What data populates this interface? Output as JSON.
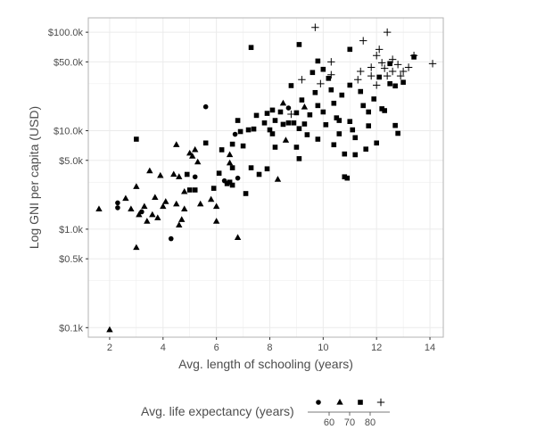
{
  "chart_data": {
    "type": "scatter",
    "xlabel": "Avg. length of schooling (years)",
    "ylabel": "Log GNI per capita (USD)",
    "x_scale": "linear",
    "y_scale": "log10",
    "xlim": [
      1.2,
      14.5
    ],
    "ylim": [
      80,
      140000
    ],
    "x_ticks": [
      2,
      4,
      6,
      8,
      10,
      12,
      14
    ],
    "x_minor_ticks": [
      3,
      5,
      7,
      9,
      11,
      13
    ],
    "y_ticks": [
      {
        "value": 100,
        "label": "$0.1k"
      },
      {
        "value": 500,
        "label": "$0.5k"
      },
      {
        "value": 1000,
        "label": "$1.0k"
      },
      {
        "value": 5000,
        "label": "$5.0k"
      },
      {
        "value": 10000,
        "label": "$10.0k"
      },
      {
        "value": 50000,
        "label": "$50.0k"
      },
      {
        "value": 100000,
        "label": "$100.0k"
      }
    ],
    "y_minor_ticks": [
      300,
      3000,
      30000
    ],
    "grid": true,
    "theme": "light",
    "legend": {
      "title": "Avg. life expectancy (years)",
      "position": "bottom",
      "shapes": [
        "circle",
        "triangle",
        "square",
        "plus"
      ],
      "labels": [
        "60",
        "70",
        "80"
      ]
    },
    "colors": {
      "marker": "#000000",
      "grid": "#ebebeb",
      "border": "#b3b3b3",
      "text": "#4d4d4d"
    },
    "points": [
      {
        "x": 2.0,
        "y": 95,
        "g": "triangle"
      },
      {
        "x": 1.6,
        "y": 1600,
        "g": "triangle"
      },
      {
        "x": 2.3,
        "y": 1850,
        "g": "circle"
      },
      {
        "x": 2.3,
        "y": 1650,
        "g": "circle"
      },
      {
        "x": 2.6,
        "y": 2050,
        "g": "triangle"
      },
      {
        "x": 2.8,
        "y": 1600,
        "g": "triangle"
      },
      {
        "x": 3.0,
        "y": 2700,
        "g": "triangle"
      },
      {
        "x": 3.0,
        "y": 650,
        "g": "triangle"
      },
      {
        "x": 3.0,
        "y": 8200,
        "g": "square"
      },
      {
        "x": 3.1,
        "y": 1400,
        "g": "triangle"
      },
      {
        "x": 3.2,
        "y": 1500,
        "g": "circle"
      },
      {
        "x": 3.3,
        "y": 1700,
        "g": "triangle"
      },
      {
        "x": 3.4,
        "y": 1200,
        "g": "triangle"
      },
      {
        "x": 3.5,
        "y": 3900,
        "g": "triangle"
      },
      {
        "x": 3.6,
        "y": 1400,
        "g": "triangle"
      },
      {
        "x": 3.7,
        "y": 2100,
        "g": "triangle"
      },
      {
        "x": 3.8,
        "y": 1300,
        "g": "triangle"
      },
      {
        "x": 3.9,
        "y": 3500,
        "g": "triangle"
      },
      {
        "x": 4.0,
        "y": 1700,
        "g": "triangle"
      },
      {
        "x": 4.1,
        "y": 1900,
        "g": "triangle"
      },
      {
        "x": 4.3,
        "y": 800,
        "g": "circle"
      },
      {
        "x": 4.4,
        "y": 3600,
        "g": "triangle"
      },
      {
        "x": 4.5,
        "y": 7200,
        "g": "triangle"
      },
      {
        "x": 4.5,
        "y": 1800,
        "g": "triangle"
      },
      {
        "x": 4.6,
        "y": 1100,
        "g": "triangle"
      },
      {
        "x": 4.6,
        "y": 3400,
        "g": "triangle"
      },
      {
        "x": 4.7,
        "y": 1250,
        "g": "triangle"
      },
      {
        "x": 4.8,
        "y": 2400,
        "g": "triangle"
      },
      {
        "x": 4.8,
        "y": 1600,
        "g": "triangle"
      },
      {
        "x": 4.9,
        "y": 3600,
        "g": "square"
      },
      {
        "x": 5.0,
        "y": 5900,
        "g": "triangle"
      },
      {
        "x": 5.1,
        "y": 5500,
        "g": "triangle"
      },
      {
        "x": 5.0,
        "y": 2500,
        "g": "square"
      },
      {
        "x": 5.2,
        "y": 2500,
        "g": "square"
      },
      {
        "x": 5.2,
        "y": 6400,
        "g": "triangle"
      },
      {
        "x": 5.2,
        "y": 3400,
        "g": "circle"
      },
      {
        "x": 5.3,
        "y": 4800,
        "g": "triangle"
      },
      {
        "x": 5.4,
        "y": 1800,
        "g": "triangle"
      },
      {
        "x": 5.6,
        "y": 17500,
        "g": "circle"
      },
      {
        "x": 5.6,
        "y": 7500,
        "g": "square"
      },
      {
        "x": 5.8,
        "y": 2000,
        "g": "triangle"
      },
      {
        "x": 5.9,
        "y": 2600,
        "g": "square"
      },
      {
        "x": 6.0,
        "y": 1200,
        "g": "triangle"
      },
      {
        "x": 6.0,
        "y": 1700,
        "g": "triangle"
      },
      {
        "x": 6.1,
        "y": 3700,
        "g": "square"
      },
      {
        "x": 6.2,
        "y": 6400,
        "g": "square"
      },
      {
        "x": 6.3,
        "y": 3100,
        "g": "circle"
      },
      {
        "x": 6.4,
        "y": 2900,
        "g": "square"
      },
      {
        "x": 6.5,
        "y": 3000,
        "g": "square"
      },
      {
        "x": 6.5,
        "y": 4700,
        "g": "triangle"
      },
      {
        "x": 6.5,
        "y": 5700,
        "g": "triangle"
      },
      {
        "x": 6.6,
        "y": 4200,
        "g": "square"
      },
      {
        "x": 6.6,
        "y": 7300,
        "g": "square"
      },
      {
        "x": 6.6,
        "y": 2800,
        "g": "square"
      },
      {
        "x": 6.7,
        "y": 9200,
        "g": "circle"
      },
      {
        "x": 6.8,
        "y": 12700,
        "g": "square"
      },
      {
        "x": 6.8,
        "y": 820,
        "g": "triangle"
      },
      {
        "x": 6.8,
        "y": 3300,
        "g": "circle"
      },
      {
        "x": 6.9,
        "y": 9800,
        "g": "square"
      },
      {
        "x": 7.0,
        "y": 7000,
        "g": "square"
      },
      {
        "x": 7.1,
        "y": 2300,
        "g": "square"
      },
      {
        "x": 7.2,
        "y": 10200,
        "g": "square"
      },
      {
        "x": 7.3,
        "y": 70000,
        "g": "square"
      },
      {
        "x": 7.3,
        "y": 4200,
        "g": "square"
      },
      {
        "x": 7.4,
        "y": 10400,
        "g": "square"
      },
      {
        "x": 7.5,
        "y": 14300,
        "g": "square"
      },
      {
        "x": 7.6,
        "y": 3600,
        "g": "square"
      },
      {
        "x": 7.8,
        "y": 12000,
        "g": "square"
      },
      {
        "x": 7.9,
        "y": 15000,
        "g": "square"
      },
      {
        "x": 7.9,
        "y": 4100,
        "g": "square"
      },
      {
        "x": 8.0,
        "y": 10200,
        "g": "square"
      },
      {
        "x": 8.1,
        "y": 9300,
        "g": "square"
      },
      {
        "x": 8.1,
        "y": 16200,
        "g": "square"
      },
      {
        "x": 8.2,
        "y": 12700,
        "g": "square"
      },
      {
        "x": 8.2,
        "y": 6800,
        "g": "square"
      },
      {
        "x": 8.3,
        "y": 3200,
        "g": "triangle"
      },
      {
        "x": 8.4,
        "y": 15500,
        "g": "square"
      },
      {
        "x": 8.5,
        "y": 11600,
        "g": "square"
      },
      {
        "x": 8.5,
        "y": 19000,
        "g": "triangle"
      },
      {
        "x": 8.6,
        "y": 8000,
        "g": "triangle"
      },
      {
        "x": 8.7,
        "y": 12000,
        "g": "square"
      },
      {
        "x": 8.7,
        "y": 17000,
        "g": "circle"
      },
      {
        "x": 8.8,
        "y": 14700,
        "g": "plus"
      },
      {
        "x": 8.8,
        "y": 28700,
        "g": "square"
      },
      {
        "x": 8.9,
        "y": 12000,
        "g": "square"
      },
      {
        "x": 9.0,
        "y": 15200,
        "g": "square"
      },
      {
        "x": 9.0,
        "y": 6800,
        "g": "square"
      },
      {
        "x": 9.1,
        "y": 75000,
        "g": "square"
      },
      {
        "x": 9.1,
        "y": 10500,
        "g": "square"
      },
      {
        "x": 9.1,
        "y": 5200,
        "g": "square"
      },
      {
        "x": 9.2,
        "y": 20500,
        "g": "square"
      },
      {
        "x": 9.2,
        "y": 33000,
        "g": "plus"
      },
      {
        "x": 9.3,
        "y": 17400,
        "g": "triangle"
      },
      {
        "x": 9.3,
        "y": 11700,
        "g": "square"
      },
      {
        "x": 9.4,
        "y": 9100,
        "g": "square"
      },
      {
        "x": 9.5,
        "y": 14500,
        "g": "square"
      },
      {
        "x": 9.6,
        "y": 39000,
        "g": "square"
      },
      {
        "x": 9.7,
        "y": 112000,
        "g": "plus"
      },
      {
        "x": 9.7,
        "y": 24400,
        "g": "square"
      },
      {
        "x": 9.8,
        "y": 51000,
        "g": "square"
      },
      {
        "x": 9.8,
        "y": 18000,
        "g": "square"
      },
      {
        "x": 9.8,
        "y": 8200,
        "g": "square"
      },
      {
        "x": 9.9,
        "y": 30000,
        "g": "plus"
      },
      {
        "x": 10.0,
        "y": 42000,
        "g": "square"
      },
      {
        "x": 10.0,
        "y": 15500,
        "g": "square"
      },
      {
        "x": 10.1,
        "y": 11500,
        "g": "square"
      },
      {
        "x": 10.2,
        "y": 34000,
        "g": "square"
      },
      {
        "x": 10.3,
        "y": 50000,
        "g": "plus"
      },
      {
        "x": 10.3,
        "y": 37000,
        "g": "plus"
      },
      {
        "x": 10.3,
        "y": 26000,
        "g": "square"
      },
      {
        "x": 10.4,
        "y": 19000,
        "g": "square"
      },
      {
        "x": 10.4,
        "y": 7200,
        "g": "square"
      },
      {
        "x": 10.5,
        "y": 13500,
        "g": "square"
      },
      {
        "x": 10.6,
        "y": 12700,
        "g": "square"
      },
      {
        "x": 10.6,
        "y": 9300,
        "g": "square"
      },
      {
        "x": 10.7,
        "y": 23000,
        "g": "square"
      },
      {
        "x": 10.8,
        "y": 5800,
        "g": "square"
      },
      {
        "x": 10.8,
        "y": 3400,
        "g": "square"
      },
      {
        "x": 10.9,
        "y": 3300,
        "g": "square"
      },
      {
        "x": 11.0,
        "y": 67000,
        "g": "square"
      },
      {
        "x": 11.0,
        "y": 29000,
        "g": "square"
      },
      {
        "x": 11.0,
        "y": 12400,
        "g": "square"
      },
      {
        "x": 11.1,
        "y": 10200,
        "g": "square"
      },
      {
        "x": 11.2,
        "y": 8500,
        "g": "square"
      },
      {
        "x": 11.2,
        "y": 5700,
        "g": "square"
      },
      {
        "x": 11.3,
        "y": 33000,
        "g": "plus"
      },
      {
        "x": 11.4,
        "y": 40000,
        "g": "plus"
      },
      {
        "x": 11.4,
        "y": 25000,
        "g": "square"
      },
      {
        "x": 11.5,
        "y": 18000,
        "g": "square"
      },
      {
        "x": 11.5,
        "y": 82000,
        "g": "plus"
      },
      {
        "x": 11.6,
        "y": 6500,
        "g": "square"
      },
      {
        "x": 11.7,
        "y": 15500,
        "g": "square"
      },
      {
        "x": 11.7,
        "y": 11200,
        "g": "square"
      },
      {
        "x": 11.8,
        "y": 36000,
        "g": "plus"
      },
      {
        "x": 11.8,
        "y": 44000,
        "g": "plus"
      },
      {
        "x": 11.9,
        "y": 21000,
        "g": "square"
      },
      {
        "x": 12.0,
        "y": 58000,
        "g": "plus"
      },
      {
        "x": 12.0,
        "y": 29000,
        "g": "plus"
      },
      {
        "x": 12.0,
        "y": 7500,
        "g": "square"
      },
      {
        "x": 12.1,
        "y": 67000,
        "g": "plus"
      },
      {
        "x": 12.1,
        "y": 35000,
        "g": "square"
      },
      {
        "x": 12.2,
        "y": 49000,
        "g": "plus"
      },
      {
        "x": 12.2,
        "y": 16700,
        "g": "square"
      },
      {
        "x": 12.3,
        "y": 16000,
        "g": "square"
      },
      {
        "x": 12.3,
        "y": 43000,
        "g": "plus"
      },
      {
        "x": 12.4,
        "y": 100000,
        "g": "plus"
      },
      {
        "x": 12.4,
        "y": 36000,
        "g": "plus"
      },
      {
        "x": 12.5,
        "y": 48000,
        "g": "square"
      },
      {
        "x": 12.5,
        "y": 30000,
        "g": "square"
      },
      {
        "x": 12.6,
        "y": 53000,
        "g": "plus"
      },
      {
        "x": 12.6,
        "y": 40000,
        "g": "plus"
      },
      {
        "x": 12.7,
        "y": 28500,
        "g": "square"
      },
      {
        "x": 12.7,
        "y": 11300,
        "g": "square"
      },
      {
        "x": 12.8,
        "y": 9400,
        "g": "square"
      },
      {
        "x": 12.8,
        "y": 47000,
        "g": "plus"
      },
      {
        "x": 12.9,
        "y": 36000,
        "g": "plus"
      },
      {
        "x": 13.0,
        "y": 31000,
        "g": "square"
      },
      {
        "x": 13.0,
        "y": 40000,
        "g": "plus"
      },
      {
        "x": 13.2,
        "y": 44000,
        "g": "plus"
      },
      {
        "x": 13.4,
        "y": 58000,
        "g": "plus"
      },
      {
        "x": 13.4,
        "y": 56000,
        "g": "square"
      },
      {
        "x": 14.1,
        "y": 48000,
        "g": "plus"
      }
    ]
  }
}
